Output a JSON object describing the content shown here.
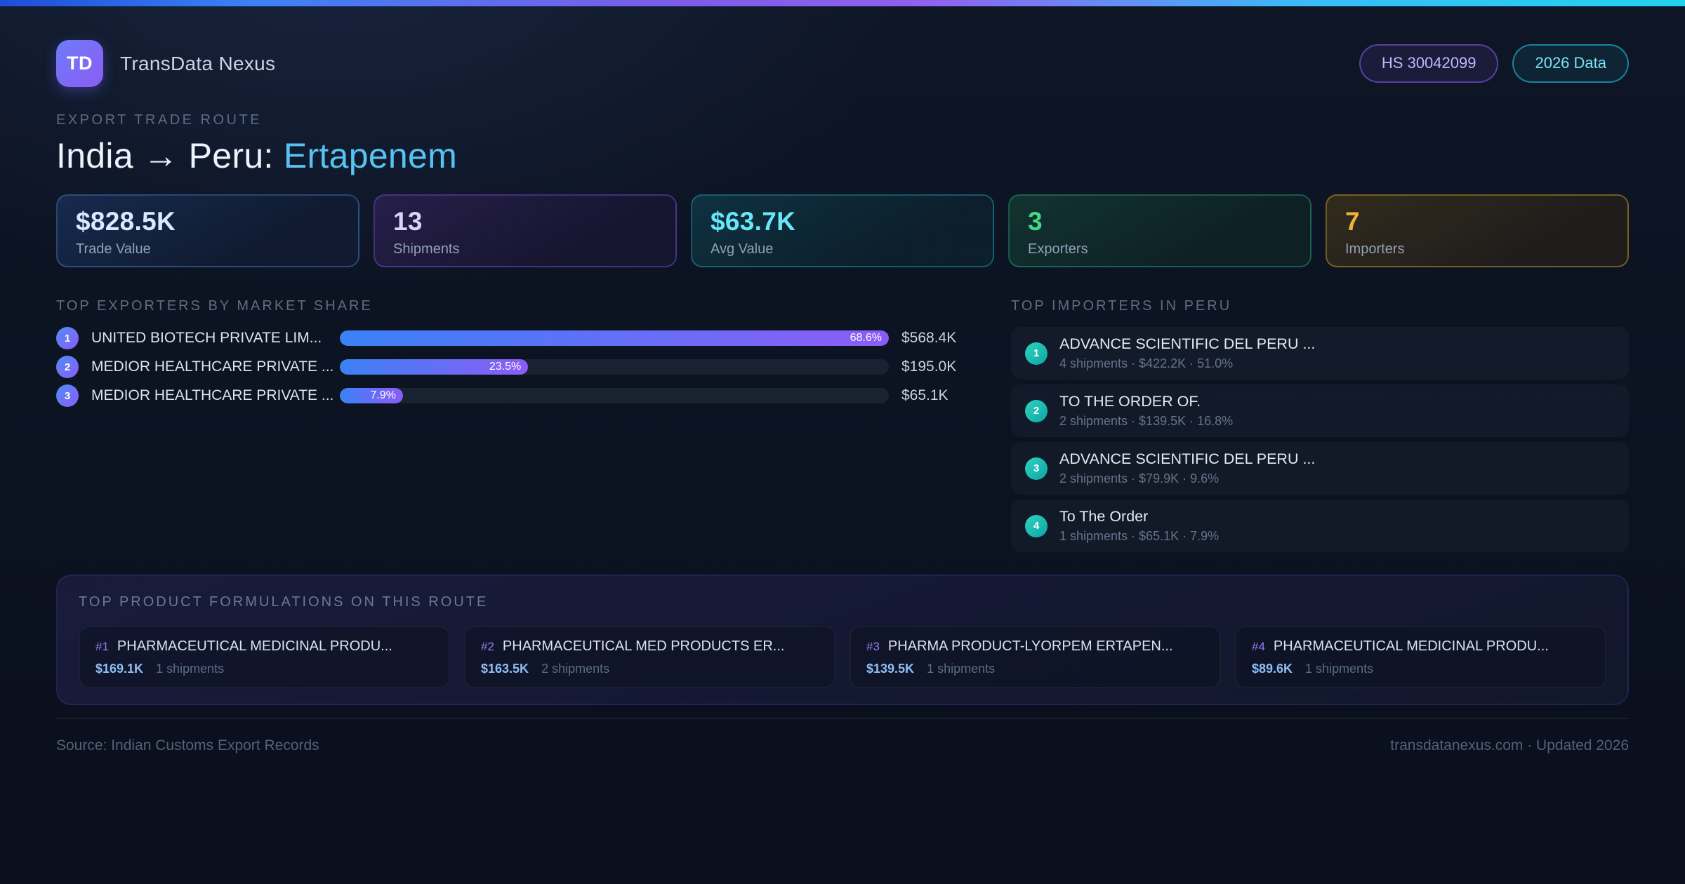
{
  "theme": {
    "accent_blue": "#3b82f6",
    "accent_purple": "#8b5cf6",
    "accent_cyan": "#22d3ee",
    "accent_green": "#34d399",
    "accent_amber": "#fbbf24"
  },
  "header": {
    "logo_text": "TD",
    "app_name": "TransData Nexus",
    "badges": [
      {
        "label": "HS 30042099",
        "style": "purple"
      },
      {
        "label": "2026 Data",
        "style": "cyan"
      }
    ]
  },
  "hero": {
    "eyebrow": "EXPORT TRADE ROUTE",
    "title_main": "India → Peru: ",
    "title_accent": "Ertapenem"
  },
  "stats": [
    {
      "value": "$828.5K",
      "label": "Trade Value",
      "style": "blue"
    },
    {
      "value": "13",
      "label": "Shipments",
      "style": "purple"
    },
    {
      "value": "$63.7K",
      "label": "Avg Value",
      "style": "cyan"
    },
    {
      "value": "3",
      "label": "Exporters",
      "style": "green"
    },
    {
      "value": "7",
      "label": "Importers",
      "style": "amber"
    }
  ],
  "exporters": {
    "title": "TOP EXPORTERS BY MARKET SHARE",
    "rows": [
      {
        "rank": "1",
        "name": "UNITED BIOTECH PRIVATE LIM...",
        "share_pct": 68.6,
        "share_label": "68.6%",
        "value": "$568.4K"
      },
      {
        "rank": "2",
        "name": "MEDIOR HEALTHCARE PRIVATE ...",
        "share_pct": 23.5,
        "share_label": "23.5%",
        "value": "$195.0K"
      },
      {
        "rank": "3",
        "name": "MEDIOR HEALTHCARE PRIVATE ...",
        "share_pct": 7.9,
        "share_label": "7.9%",
        "value": "$65.1K"
      }
    ]
  },
  "importers": {
    "title": "TOP IMPORTERS IN PERU",
    "rows": [
      {
        "rank": "1",
        "name": "ADVANCE SCIENTIFIC DEL PERU ...",
        "details": "4 shipments · $422.2K · 51.0%"
      },
      {
        "rank": "2",
        "name": "TO THE ORDER OF.",
        "details": "2 shipments · $139.5K · 16.8%"
      },
      {
        "rank": "3",
        "name": "ADVANCE SCIENTIFIC DEL PERU ...",
        "details": "2 shipments · $79.9K · 9.6%"
      },
      {
        "rank": "4",
        "name": "To The Order",
        "details": "1 shipments · $65.1K · 7.9%"
      }
    ]
  },
  "formulations": {
    "title": "TOP PRODUCT FORMULATIONS ON THIS ROUTE",
    "cards": [
      {
        "rank": "#1",
        "name": "PHARMACEUTICAL MEDICINAL PRODU...",
        "value": "$169.1K",
        "shipments": "1 shipments"
      },
      {
        "rank": "#2",
        "name": "PHARMACEUTICAL MED PRODUCTS ER...",
        "value": "$163.5K",
        "shipments": "2 shipments"
      },
      {
        "rank": "#3",
        "name": "PHARMA PRODUCT-LYORPEM ERTAPEN...",
        "value": "$139.5K",
        "shipments": "1 shipments"
      },
      {
        "rank": "#4",
        "name": "PHARMACEUTICAL MEDICINAL PRODU...",
        "value": "$89.6K",
        "shipments": "1 shipments"
      }
    ]
  },
  "footer": {
    "source": "Source: Indian Customs Export Records",
    "site": "transdatanexus.com · Updated 2026"
  }
}
